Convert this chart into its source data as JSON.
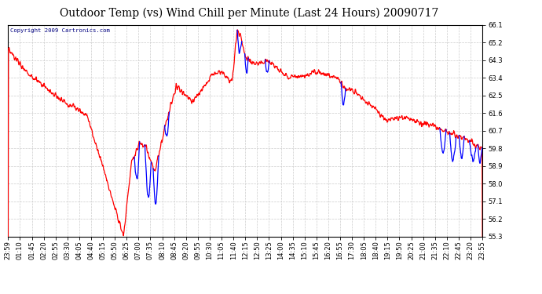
{
  "title": "Outdoor Temp (vs) Wind Chill per Minute (Last 24 Hours) 20090717",
  "copyright": "Copyright 2009 Cartronics.com",
  "y_ticks": [
    55.3,
    56.2,
    57.1,
    58.0,
    58.9,
    59.8,
    60.7,
    61.6,
    62.5,
    63.4,
    64.3,
    65.2,
    66.1
  ],
  "ylim": [
    55.3,
    66.1
  ],
  "x_labels": [
    "23:59",
    "01:10",
    "01:45",
    "02:20",
    "02:55",
    "03:30",
    "04:05",
    "04:40",
    "05:15",
    "05:50",
    "06:25",
    "07:00",
    "07:35",
    "08:10",
    "08:45",
    "09:20",
    "09:55",
    "10:30",
    "11:05",
    "11:40",
    "12:15",
    "12:50",
    "13:25",
    "14:00",
    "14:35",
    "15:10",
    "15:45",
    "16:20",
    "16:55",
    "17:30",
    "18:05",
    "18:40",
    "19:15",
    "19:50",
    "20:25",
    "21:00",
    "21:35",
    "22:10",
    "22:45",
    "23:20",
    "23:55"
  ],
  "background_color": "#ffffff",
  "plot_bg_color": "#ffffff",
  "title_color": "#000000",
  "grid_color": "#cccccc",
  "line_color_red": "#ff0000",
  "line_color_blue": "#0000ff",
  "title_fontsize": 10,
  "tick_fontsize": 6,
  "copyright_color": "#000080"
}
